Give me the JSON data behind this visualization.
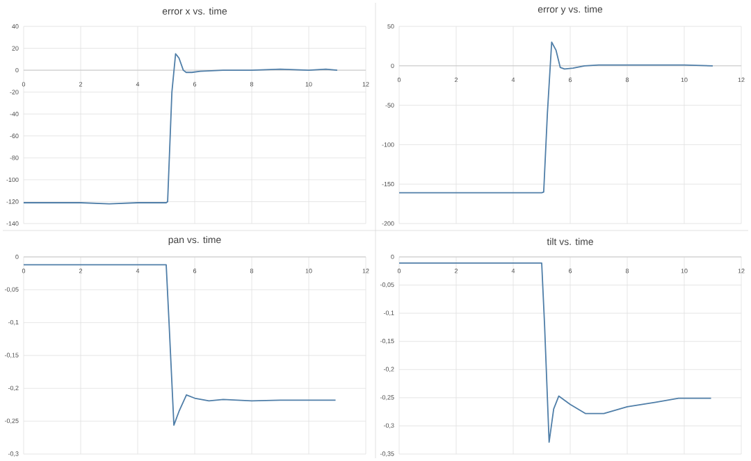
{
  "chart_data": [
    {
      "type": "line",
      "title": "error x vs. time",
      "color": "#4f7ea8",
      "grid": true,
      "xlim": [
        0,
        12
      ],
      "xticks": [
        0,
        2,
        4,
        6,
        8,
        10,
        12
      ],
      "ylim": [
        -140,
        40
      ],
      "yticks": [
        -140,
        -120,
        -100,
        -80,
        -60,
        -40,
        -20,
        0,
        20,
        40
      ],
      "x": [
        0,
        1,
        2,
        3,
        4,
        5,
        5.05,
        5.2,
        5.33,
        5.45,
        5.6,
        5.7,
        5.9,
        6.2,
        7,
        8,
        9,
        10,
        10.6,
        11
      ],
      "values": [
        -121,
        -121,
        -121,
        -122,
        -121,
        -121,
        -120,
        -20,
        15,
        11,
        0,
        -2,
        -2,
        -1,
        0,
        0,
        1,
        0,
        1,
        0
      ]
    },
    {
      "type": "line",
      "title": "error y vs. time",
      "color": "#4f7ea8",
      "grid": true,
      "xlim": [
        0,
        12
      ],
      "xticks": [
        0,
        2,
        4,
        6,
        8,
        10,
        12
      ],
      "ylim": [
        -200,
        50
      ],
      "yticks": [
        -200,
        -150,
        -100,
        -50,
        0,
        50
      ],
      "x": [
        0,
        1,
        2,
        3,
        4,
        5,
        5.07,
        5.2,
        5.35,
        5.5,
        5.65,
        5.8,
        6.1,
        6.5,
        7,
        8,
        9,
        10,
        11
      ],
      "values": [
        -161,
        -161,
        -161,
        -161,
        -161,
        -161,
        -160,
        -60,
        30,
        20,
        -2,
        -4,
        -3,
        0,
        1,
        1,
        1,
        1,
        0
      ]
    },
    {
      "type": "line",
      "title": "pan vs. time",
      "color": "#4f7ea8",
      "grid": true,
      "xlim": [
        0,
        12
      ],
      "xticks": [
        0,
        2,
        4,
        6,
        8,
        10,
        12
      ],
      "ylim": [
        -0.3,
        0
      ],
      "yticks": [
        {
          "value": -0.3,
          "label": "-0,3"
        },
        {
          "value": -0.25,
          "label": "-0,25"
        },
        {
          "value": -0.2,
          "label": "-0,2"
        },
        {
          "value": -0.15,
          "label": "-0,15"
        },
        {
          "value": -0.1,
          "label": "-0,1"
        },
        {
          "value": -0.05,
          "label": "-0,05"
        },
        0
      ],
      "x": [
        0,
        1,
        2,
        3,
        4,
        5,
        5.1,
        5.27,
        5.45,
        5.71,
        6,
        6.5,
        7,
        8,
        9,
        10,
        10.94
      ],
      "values": [
        -0.012,
        -0.012,
        -0.012,
        -0.012,
        -0.012,
        -0.012,
        -0.1,
        -0.256,
        -0.235,
        -0.21,
        -0.215,
        -0.219,
        -0.217,
        -0.219,
        -0.218,
        -0.218,
        -0.218
      ]
    },
    {
      "type": "line",
      "title": "tilt vs. time",
      "color": "#4f7ea8",
      "grid": true,
      "xlim": [
        0,
        12
      ],
      "xticks": [
        0,
        2,
        4,
        6,
        8,
        10,
        12
      ],
      "ylim": [
        -0.35,
        0
      ],
      "yticks": [
        {
          "value": -0.35,
          "label": "-0,35"
        },
        {
          "value": -0.3,
          "label": "-0,3"
        },
        {
          "value": -0.25,
          "label": "-0,25"
        },
        {
          "value": -0.2,
          "label": "-0,2"
        },
        {
          "value": -0.15,
          "label": "-0,15"
        },
        {
          "value": -0.1,
          "label": "-0,1"
        },
        {
          "value": -0.05,
          "label": "-0,05"
        },
        0
      ],
      "x": [
        0,
        1,
        2,
        3,
        4,
        5,
        5.1,
        5.26,
        5.42,
        5.6,
        6,
        6.53,
        7.18,
        8,
        9,
        9.8,
        10.94
      ],
      "values": [
        -0.011,
        -0.011,
        -0.011,
        -0.011,
        -0.011,
        -0.011,
        -0.12,
        -0.329,
        -0.27,
        -0.247,
        -0.262,
        -0.278,
        -0.278,
        -0.266,
        -0.258,
        -0.251,
        -0.251
      ]
    }
  ]
}
